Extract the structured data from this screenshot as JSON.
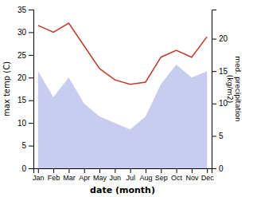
{
  "chart_data": {
    "type": "line",
    "xlabel": "date (month)",
    "ylabel": "max temp (C)",
    "y2label": "med. precipitation\n(kg/m2)",
    "categories": [
      "Jan",
      "Feb",
      "Mar",
      "Apr",
      "May",
      "Jun",
      "Jul",
      "Aug",
      "Sep",
      "Oct",
      "Nov",
      "Dec"
    ],
    "series": [
      {
        "type": "area",
        "axis": "y2",
        "color": "#b0b8e8",
        "values": [
          15,
          11,
          14,
          10,
          8,
          7,
          6,
          8,
          13,
          16,
          14,
          15
        ]
      },
      {
        "type": "line",
        "color": "#c0392b",
        "values": [
          31.5,
          30.0,
          32.0,
          27.0,
          22.0,
          19.5,
          18.5,
          19.0,
          24.5,
          26.0,
          24.5,
          29.0
        ]
      }
    ],
    "ylim": [
      0,
      35
    ],
    "yticks": [
      0,
      5,
      10,
      15,
      20,
      25,
      30,
      35
    ],
    "y2lim": [
      0,
      24.5
    ],
    "y2ticks": [
      0,
      5,
      10,
      15,
      20
    ],
    "grid": false
  }
}
